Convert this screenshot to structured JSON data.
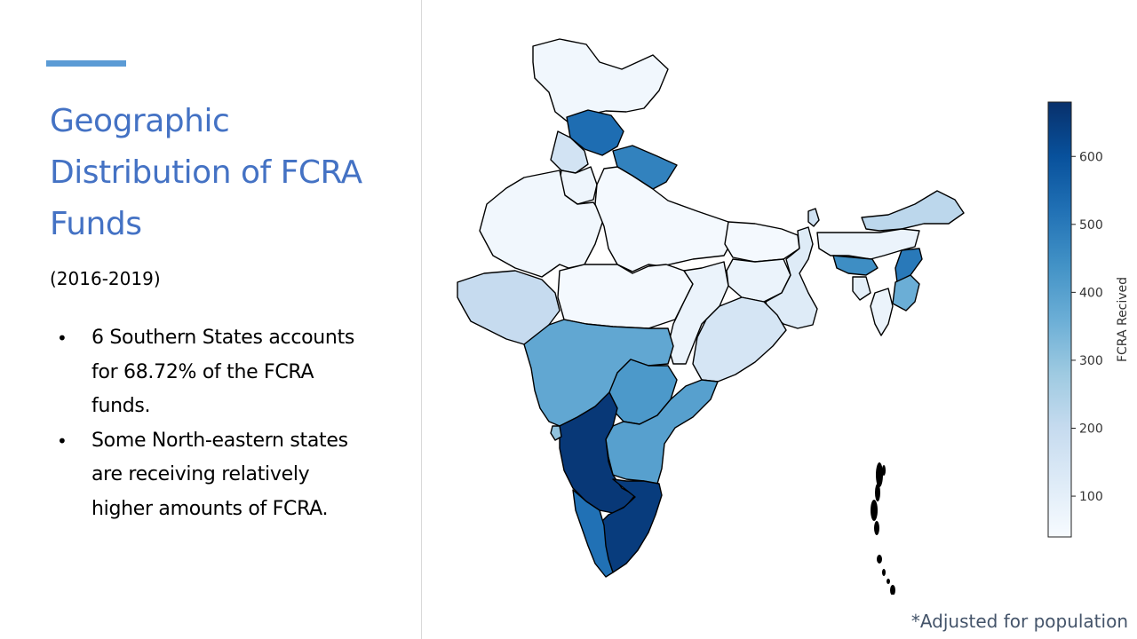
{
  "slide": {
    "title_lines": [
      "Geographic",
      "Distribution of FCRA",
      "Funds"
    ],
    "subtitle": "(2016-2019)",
    "bullets": [
      "6 Southern States accounts for 68.72% of the FCRA funds.",
      "Some North-eastern states are receiving relatively higher amounts of FCRA."
    ],
    "footnote": "*Adjusted for population"
  },
  "map": {
    "colorbar": {
      "label": "FCRA Recived",
      "min": 40,
      "max": 680,
      "ticks": [
        100,
        200,
        300,
        400,
        500,
        600
      ],
      "colors": [
        "#f7fbff",
        "#deebf7",
        "#c6dbef",
        "#9ecae1",
        "#6baed6",
        "#4292c6",
        "#2171b5",
        "#08519c",
        "#08306b"
      ]
    },
    "regions": [
      {
        "name": "Jammu & Kashmir",
        "value": 60
      },
      {
        "name": "Himachal Pradesh",
        "value": 530
      },
      {
        "name": "Punjab",
        "value": 160
      },
      {
        "name": "Uttarakhand",
        "value": 480
      },
      {
        "name": "Haryana",
        "value": 70
      },
      {
        "name": "Rajasthan",
        "value": 60
      },
      {
        "name": "Uttar Pradesh",
        "value": 50
      },
      {
        "name": "Gujarat",
        "value": 200
      },
      {
        "name": "Madhya Pradesh",
        "value": 50
      },
      {
        "name": "Bihar",
        "value": 50
      },
      {
        "name": "Jharkhand",
        "value": 80
      },
      {
        "name": "West Bengal",
        "value": 120
      },
      {
        "name": "Chhattisgarh",
        "value": 80
      },
      {
        "name": "Odisha",
        "value": 150
      },
      {
        "name": "Maharashtra",
        "value": 380
      },
      {
        "name": "Telangana",
        "value": 420
      },
      {
        "name": "Andhra Pradesh",
        "value": 400
      },
      {
        "name": "Karnataka",
        "value": 660
      },
      {
        "name": "Goa",
        "value": 300
      },
      {
        "name": "Tamil Nadu",
        "value": 650
      },
      {
        "name": "Kerala",
        "value": 520
      },
      {
        "name": "Sikkim",
        "value": 170
      },
      {
        "name": "Arunachal Pradesh",
        "value": 220
      },
      {
        "name": "Assam",
        "value": 80
      },
      {
        "name": "Meghalaya",
        "value": 450
      },
      {
        "name": "Nagaland",
        "value": 500
      },
      {
        "name": "Manipur",
        "value": 360
      },
      {
        "name": "Mizoram",
        "value": 80
      },
      {
        "name": "Tripura",
        "value": 100
      }
    ]
  }
}
